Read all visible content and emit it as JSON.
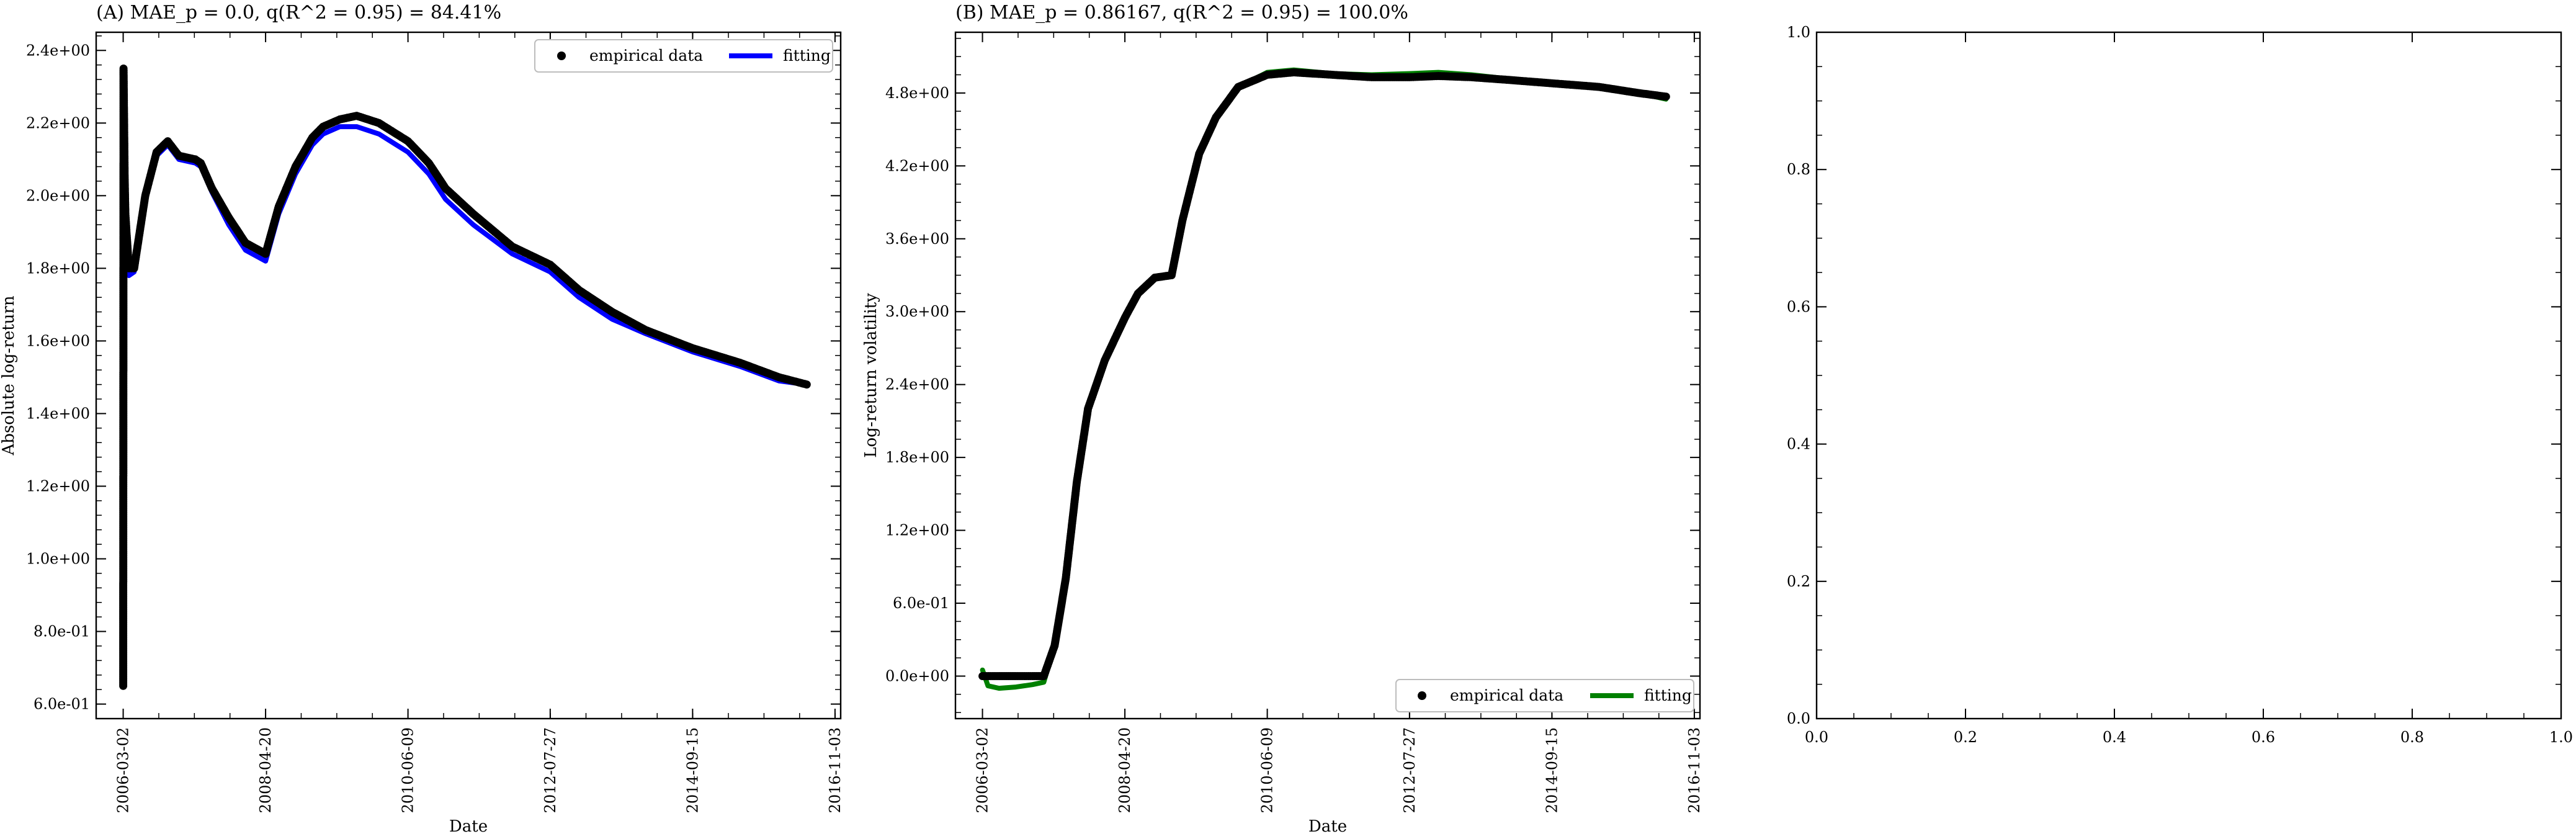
{
  "chart_data": [
    {
      "type": "line",
      "title": "(A) MAE_p = 0.0, q(R^2 = 0.95) = 84.41%",
      "xlabel": "Date",
      "ylabel": "Absolute log-return",
      "x_ticks": [
        "2006-03-02",
        "2008-04-20",
        "2010-06-09",
        "2012-07-27",
        "2014-09-15",
        "2016-11-03"
      ],
      "y_ticks": [
        "6.0e-01",
        "8.0e-01",
        "1.0e+00",
        "1.2e+00",
        "1.4e+00",
        "1.6e+00",
        "1.8e+00",
        "2.0e+00",
        "2.2e+00",
        "2.4e+00"
      ],
      "xlim": [
        "2005-10-05",
        "2016-12-04"
      ],
      "ylim": [
        0.56,
        2.45
      ],
      "legend_position": "top-right",
      "series": [
        {
          "name": "empirical data",
          "style": "markers",
          "color": "#000000",
          "x": [
            "2006-03-02",
            "2006-03-04",
            "2006-03-07",
            "2006-03-10",
            "2006-03-14",
            "2006-03-20",
            "2006-04-02",
            "2006-05-01",
            "2006-07-01",
            "2006-09-01",
            "2006-11-01",
            "2007-01-01",
            "2007-04-01",
            "2007-05-01",
            "2007-07-01",
            "2007-10-01",
            "2008-01-01",
            "2008-04-20",
            "2008-07-01",
            "2008-10-01",
            "2009-01-01",
            "2009-03-01",
            "2009-06-01",
            "2009-09-01",
            "2010-01-01",
            "2010-06-09",
            "2010-10-01",
            "2011-01-01",
            "2011-06-01",
            "2012-01-01",
            "2012-07-27",
            "2013-01-01",
            "2013-07-01",
            "2014-01-01",
            "2014-09-15",
            "2015-06-01",
            "2016-01-01",
            "2016-06-01"
          ],
          "y": [
            0.65,
            2.35,
            2.2,
            2.05,
            1.95,
            1.9,
            1.8,
            1.8,
            2.0,
            2.12,
            2.15,
            2.11,
            2.1,
            2.09,
            2.02,
            1.94,
            1.87,
            1.84,
            1.97,
            2.08,
            2.16,
            2.19,
            2.21,
            2.22,
            2.2,
            2.15,
            2.09,
            2.02,
            1.95,
            1.86,
            1.81,
            1.74,
            1.68,
            1.63,
            1.58,
            1.54,
            1.5,
            1.48
          ]
        },
        {
          "name": "fitting",
          "style": "line",
          "color": "#0000ff",
          "x": [
            "2006-03-02",
            "2006-03-04",
            "2006-03-07",
            "2006-03-10",
            "2006-03-14",
            "2006-03-20",
            "2006-04-02",
            "2006-05-01",
            "2006-07-01",
            "2006-09-01",
            "2006-11-01",
            "2007-01-01",
            "2007-04-01",
            "2007-05-01",
            "2007-07-01",
            "2007-10-01",
            "2008-01-01",
            "2008-04-20",
            "2008-07-01",
            "2008-10-01",
            "2009-01-01",
            "2009-03-01",
            "2009-06-01",
            "2009-09-01",
            "2010-01-01",
            "2010-06-09",
            "2010-10-01",
            "2011-01-01",
            "2011-06-01",
            "2012-01-01",
            "2012-07-27",
            "2013-01-01",
            "2013-07-01",
            "2014-01-01",
            "2014-09-15",
            "2015-06-01",
            "2016-01-01",
            "2016-06-01"
          ],
          "y": [
            0.65,
            2.25,
            2.0,
            1.9,
            1.85,
            1.8,
            1.78,
            1.79,
            2.0,
            2.11,
            2.14,
            2.1,
            2.09,
            2.08,
            2.01,
            1.92,
            1.85,
            1.82,
            1.95,
            2.06,
            2.14,
            2.17,
            2.19,
            2.19,
            2.17,
            2.12,
            2.06,
            1.99,
            1.92,
            1.84,
            1.79,
            1.72,
            1.66,
            1.62,
            1.57,
            1.53,
            1.49,
            1.48
          ]
        }
      ]
    },
    {
      "type": "line",
      "title": "(B) MAE_p = 0.86167, q(R^2 = 0.95) = 100.0%",
      "xlabel": "Date",
      "ylabel": "Log-return volatility",
      "x_ticks": [
        "2006-03-02",
        "2008-04-20",
        "2010-06-09",
        "2012-07-27",
        "2014-09-15",
        "2016-11-03"
      ],
      "y_ticks": [
        "0.0e+00",
        "6.0e-01",
        "1.2e+00",
        "1.8e+00",
        "2.4e+00",
        "3.0e+00",
        "3.6e+00",
        "4.2e+00",
        "4.8e+00"
      ],
      "xlim": [
        "2005-10-05",
        "2016-12-04"
      ],
      "ylim": [
        -0.35,
        5.3
      ],
      "legend_position": "bottom-right",
      "series": [
        {
          "name": "empirical data",
          "style": "markers",
          "color": "#000000",
          "x": [
            "2006-03-02",
            "2006-06-01",
            "2006-09-01",
            "2006-12-01",
            "2007-02-01",
            "2007-04-01",
            "2007-06-01",
            "2007-08-01",
            "2007-10-01",
            "2008-01-01",
            "2008-04-20",
            "2008-07-01",
            "2008-10-01",
            "2009-01-01",
            "2009-03-01",
            "2009-06-01",
            "2009-09-01",
            "2010-01-01",
            "2010-06-09",
            "2010-11-01",
            "2011-06-01",
            "2012-01-01",
            "2012-07-27",
            "2013-01-01",
            "2013-07-01",
            "2014-01-01",
            "2014-09-15",
            "2015-06-01",
            "2016-01-01",
            "2016-06-01"
          ],
          "y": [
            0.0,
            0.0,
            0.0,
            0.0,
            0.0,
            0.25,
            0.8,
            1.6,
            2.2,
            2.6,
            2.95,
            3.15,
            3.28,
            3.3,
            3.75,
            4.3,
            4.6,
            4.85,
            4.95,
            4.97,
            4.95,
            4.93,
            4.93,
            4.94,
            4.93,
            4.91,
            4.88,
            4.85,
            4.8,
            4.77
          ]
        },
        {
          "name": "fitting",
          "style": "line",
          "color": "#008000",
          "x": [
            "2006-03-02",
            "2006-04-01",
            "2006-06-01",
            "2006-09-01",
            "2006-12-01",
            "2007-02-01",
            "2007-04-01",
            "2007-06-01",
            "2007-08-01",
            "2007-10-01",
            "2008-01-01",
            "2008-04-20",
            "2008-07-01",
            "2008-10-01",
            "2009-01-01",
            "2009-03-01",
            "2009-06-01",
            "2009-09-01",
            "2010-01-01",
            "2010-06-09",
            "2010-11-01",
            "2011-06-01",
            "2012-01-01",
            "2012-07-27",
            "2013-01-01",
            "2013-07-01",
            "2014-01-01",
            "2014-09-15",
            "2015-06-01",
            "2016-01-01",
            "2016-06-01"
          ],
          "y": [
            0.05,
            -0.08,
            -0.1,
            -0.09,
            -0.07,
            -0.05,
            0.25,
            0.8,
            1.6,
            2.2,
            2.6,
            2.95,
            3.15,
            3.28,
            3.3,
            3.75,
            4.3,
            4.6,
            4.85,
            4.97,
            4.99,
            4.96,
            4.95,
            4.96,
            4.97,
            4.95,
            4.92,
            4.89,
            4.85,
            4.8,
            4.75
          ]
        }
      ]
    },
    {
      "type": "line",
      "title": "",
      "x_ticks": [
        "0.0",
        "0.2",
        "0.4",
        "0.6",
        "0.8",
        "1.0"
      ],
      "y_ticks": [
        "0.0",
        "0.2",
        "0.4",
        "0.6",
        "0.8",
        "1.0"
      ],
      "xlim": [
        0,
        1
      ],
      "ylim": [
        0,
        1
      ],
      "series": []
    }
  ]
}
